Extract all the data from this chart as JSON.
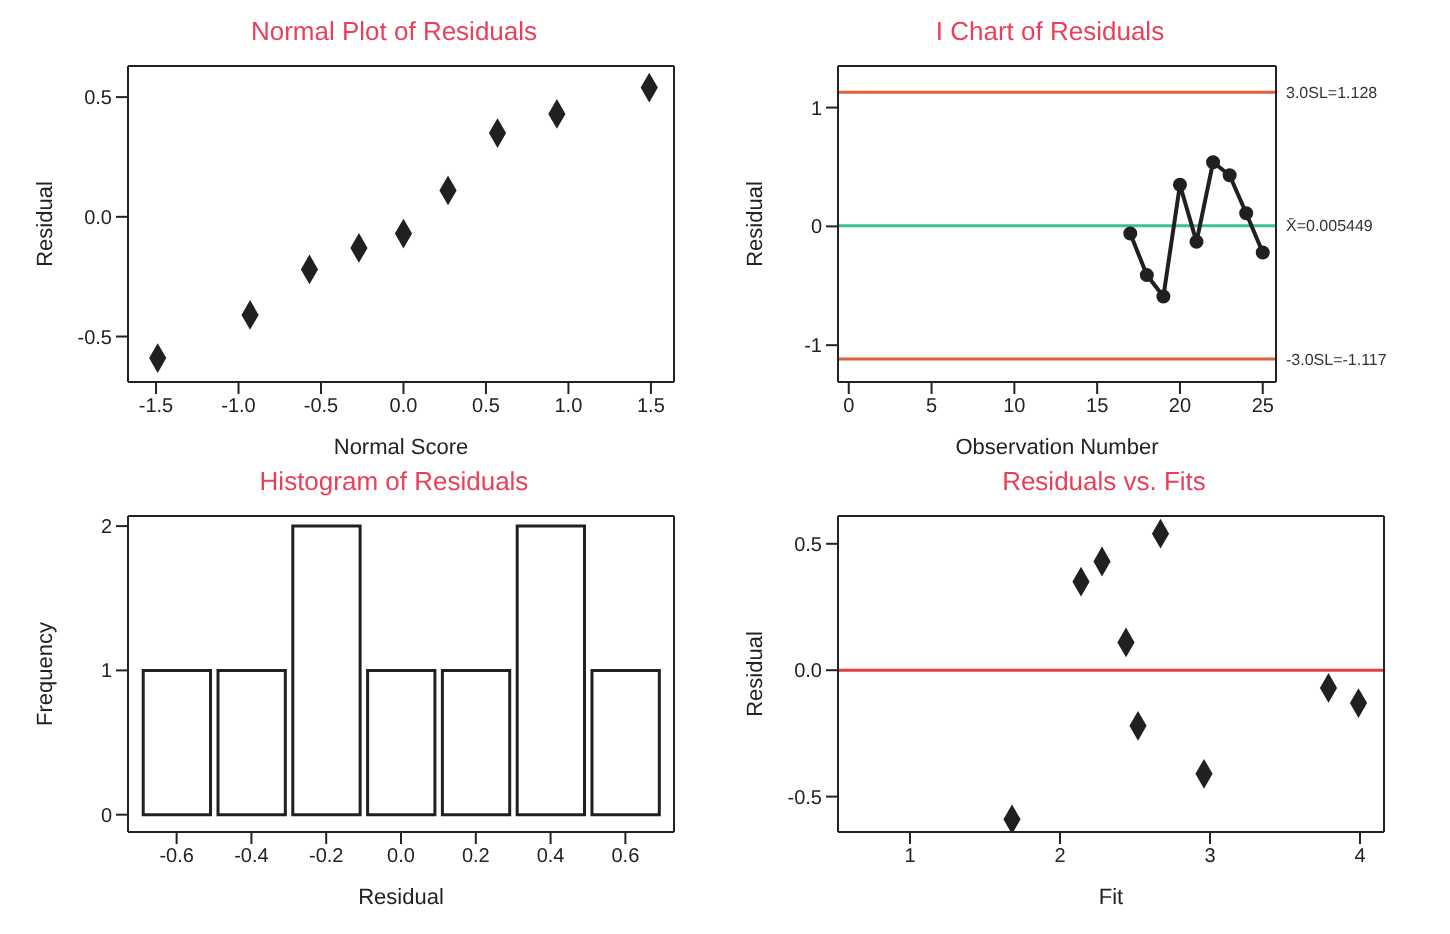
{
  "chart_data": [
    {
      "type": "scatter",
      "title": "Normal Plot of Residuals",
      "xlabel": "Normal Score",
      "ylabel": "Residual",
      "marker": "diamond",
      "x": [
        -1.49,
        -0.93,
        -0.57,
        -0.27,
        0,
        0.27,
        0.57,
        0.93,
        1.49
      ],
      "series": [
        {
          "color": "#202020",
          "values": [
            -0.59,
            -0.41,
            -0.22,
            -0.13,
            -0.07,
            0.11,
            0.35,
            0.43,
            0.54
          ]
        }
      ],
      "xlim": [
        -1.67,
        1.64
      ],
      "xticks": [
        -1.5,
        {
          "value": -1,
          "label": "-1.0"
        },
        -0.5,
        {
          "value": 0,
          "label": "0.0"
        },
        0.5,
        {
          "value": 1,
          "label": "1.0"
        },
        1.5
      ],
      "ylim": [
        -0.69,
        0.63
      ],
      "yticks": [
        -0.5,
        {
          "value": 0,
          "label": "0.0"
        },
        0.5
      ]
    },
    {
      "type": "line",
      "title": "I Chart of Residuals",
      "xlabel": "Observation Number",
      "ylabel": "Residual",
      "marker": "circle",
      "x": [
        17,
        18,
        19,
        20,
        21,
        22,
        23,
        24,
        25
      ],
      "series": [
        {
          "color": "#202020",
          "values": [
            -0.06,
            -0.41,
            -0.59,
            0.35,
            -0.13,
            0.54,
            0.43,
            0.11,
            -0.22
          ]
        }
      ],
      "xlim": [
        -0.65,
        25.8
      ],
      "xticks": [
        0,
        5,
        10,
        15,
        20,
        25
      ],
      "ylim": [
        -1.31,
        1.35
      ],
      "yticks": [
        -1,
        0,
        1
      ],
      "ref_lines": [
        {
          "axis": "y",
          "value": 1.128,
          "label": "3.0SL=1.128",
          "color": "#e0603a"
        },
        {
          "axis": "y",
          "value": 0.005449,
          "label": "X̄=0.005449",
          "color": "#3cbf9a"
        },
        {
          "axis": "y",
          "value": -1.117,
          "label": "-3.0SL=-1.117",
          "color": "#e0603a"
        }
      ]
    },
    {
      "type": "histogram",
      "title": "Histogram of Residuals",
      "xlabel": "Residual",
      "ylabel": "Frequency",
      "color": "#ffffff",
      "bins": [
        -0.7,
        -0.5,
        -0.3,
        -0.1,
        0.1,
        0.3,
        0.5,
        0.7
      ],
      "values": [
        1,
        1,
        2,
        1,
        1,
        2,
        1
      ],
      "xlim": [
        -0.73,
        0.73
      ],
      "xticks": [
        -0.6,
        -0.4,
        -0.2,
        {
          "value": 0,
          "label": "0.0"
        },
        0.2,
        0.4,
        0.6
      ],
      "ylim": [
        -0.12,
        2.07
      ],
      "yticks": [
        0,
        1,
        2
      ]
    },
    {
      "type": "scatter",
      "title": "Residuals vs. Fits",
      "xlabel": "Fit",
      "ylabel": "Residual",
      "marker": "diamond",
      "x": [
        1.68,
        2.14,
        2.28,
        2.44,
        2.52,
        2.67,
        2.96,
        3.79,
        3.99
      ],
      "series": [
        {
          "color": "#202020",
          "values": [
            -0.59,
            0.35,
            0.43,
            0.11,
            -0.22,
            0.54,
            -0.41,
            -0.07,
            -0.13
          ]
        }
      ],
      "xlim": [
        0.52,
        4.16
      ],
      "xticks": [
        1,
        2,
        3,
        4
      ],
      "ylim": [
        -0.64,
        0.61
      ],
      "yticks": [
        -0.5,
        {
          "value": 0,
          "label": "0.0"
        },
        0.5
      ],
      "ref_lines": [
        {
          "axis": "y",
          "value": 0,
          "color": "#e04040"
        }
      ]
    }
  ]
}
